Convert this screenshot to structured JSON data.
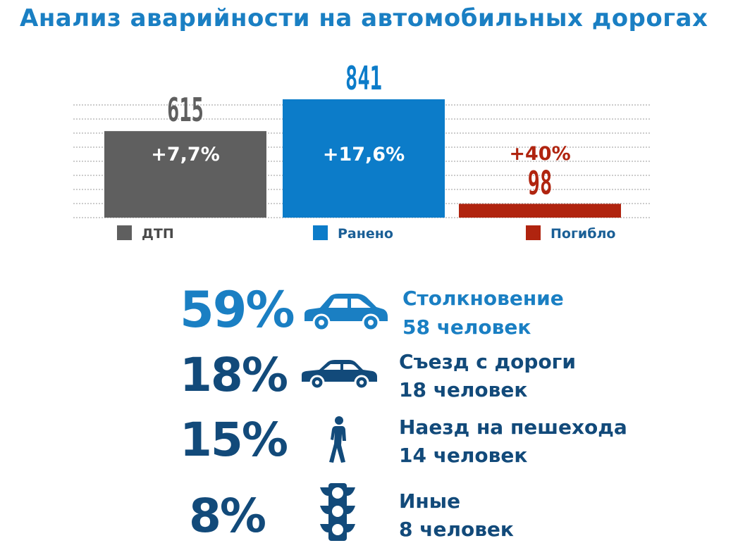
{
  "title": "Анализ аварийности на автомобильных дорогах",
  "colors": {
    "title": "#1a7fc3",
    "dtp": "#5f5f5f",
    "injured": "#0c7cc9",
    "died": "#b0240f",
    "stat_blue": "#1a7fc3",
    "stat_dark": "#124a7a"
  },
  "chart_data": {
    "type": "bar",
    "title": "",
    "categories": [
      "ДТП",
      "Ранено",
      "Погибло"
    ],
    "values": [
      615,
      841,
      98
    ],
    "changes": [
      "+7,7%",
      "+17,6%",
      "+40%"
    ],
    "legend": [
      "ДТП",
      "Ранено",
      "Погибло"
    ],
    "legend_position": "bottom",
    "grid": true,
    "ylim": [
      0,
      1000
    ]
  },
  "stats": [
    {
      "percent": "59%",
      "icon": "car-icon",
      "label": "Столкновение",
      "count": "58 человек"
    },
    {
      "percent": "18%",
      "icon": "sedan-icon",
      "label": "Съезд с дороги",
      "count": "18 человек"
    },
    {
      "percent": "15%",
      "icon": "pedestrian-icon",
      "label": "Наезд на пешехода",
      "count": "14 человек"
    },
    {
      "percent": "8%",
      "icon": "traffic-light-icon",
      "label": "Иные",
      "count": "8 человек"
    }
  ]
}
